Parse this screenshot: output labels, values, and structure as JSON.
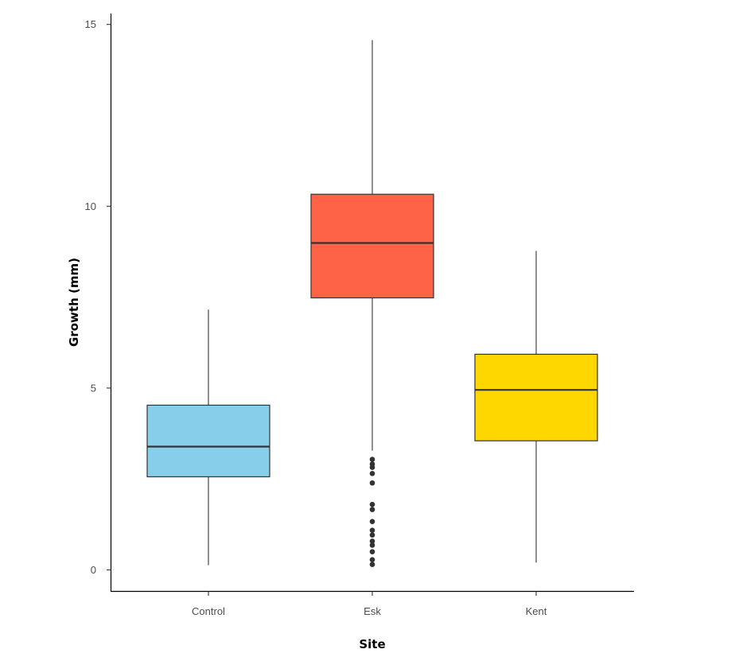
{
  "chart_data": {
    "type": "box",
    "title": "",
    "xlabel": "Site",
    "ylabel": "Growth (mm)",
    "ylim": [
      -0.55,
      15.3
    ],
    "yticks": [
      0,
      5,
      10,
      15
    ],
    "grid": false,
    "legend": null,
    "categories": [
      "Control",
      "Esk",
      "Kent"
    ],
    "series": [
      {
        "name": "Control",
        "color": "#87CEEB",
        "whisker_low": 0.13,
        "q1": 2.56,
        "median": 3.39,
        "q3": 4.53,
        "whisker_high": 7.16,
        "outliers": []
      },
      {
        "name": "Esk",
        "color": "#FF6347",
        "whisker_low": 3.28,
        "q1": 7.48,
        "median": 8.99,
        "q3": 10.33,
        "whisker_high": 14.57,
        "outliers": [
          3.04,
          2.91,
          2.82,
          2.65,
          2.39,
          1.8,
          1.66,
          1.33,
          1.09,
          0.96,
          0.79,
          0.68,
          0.5,
          0.28,
          0.15
        ]
      },
      {
        "name": "Kent",
        "color": "#FFD700",
        "whisker_low": 0.2,
        "q1": 3.55,
        "median": 4.95,
        "q3": 5.93,
        "whisker_high": 8.77,
        "outliers": []
      }
    ]
  }
}
